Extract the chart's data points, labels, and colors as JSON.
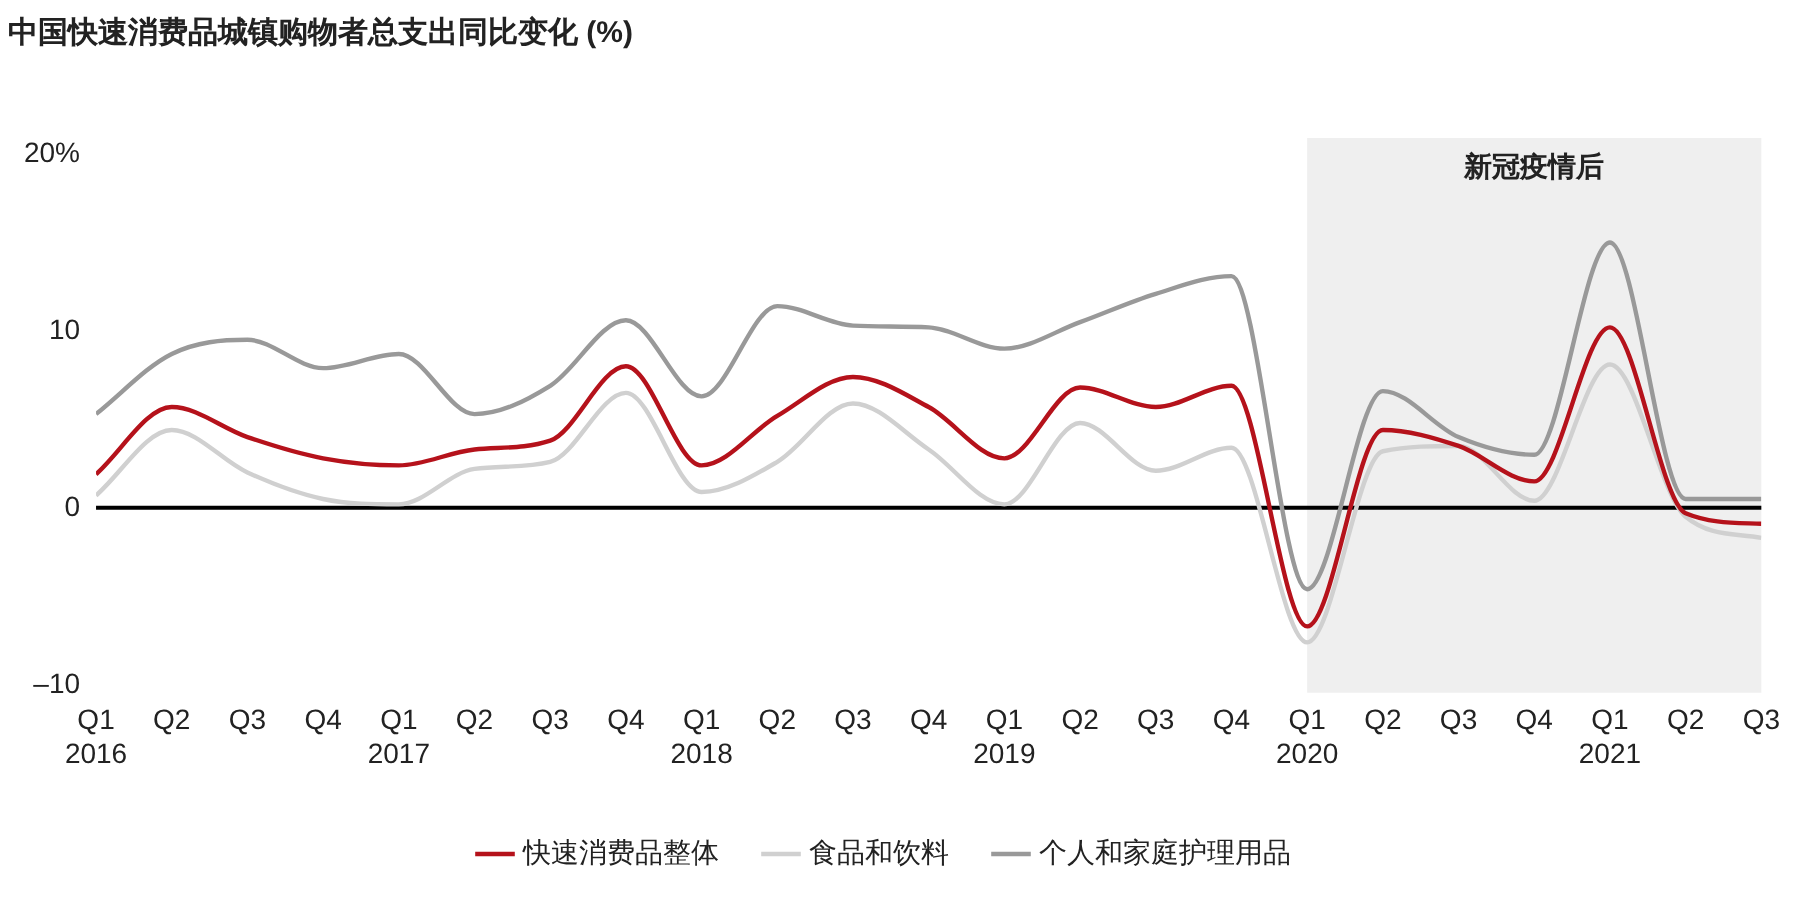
{
  "chart_data": {
    "type": "line",
    "title": "中国快速消费品城镇购物者总支出同比变化 (%)",
    "x": [
      "2016-01",
      "2016-04",
      "2016-07",
      "2016-10",
      "2017-01",
      "2017-04",
      "2017-07",
      "2017-10",
      "2018-01",
      "2018-04",
      "2018-07",
      "2018-10",
      "2019-01",
      "2019-04",
      "2019-07",
      "2019-10",
      "2020-01",
      "2020-04",
      "2020-07",
      "2020-10",
      "2021-01",
      "2021-04",
      "2021-07"
    ],
    "xlim": [
      "2016-01",
      "2021-07"
    ],
    "xticks": [
      {
        "value": "2016-01",
        "label": "Q1\n2016"
      },
      {
        "value": "2016-04",
        "label": "Q2"
      },
      {
        "value": "2016-07",
        "label": "Q3"
      },
      {
        "value": "2016-10",
        "label": "Q4"
      },
      {
        "value": "2017-01",
        "label": "Q1\n2017"
      },
      {
        "value": "2017-04",
        "label": "Q2"
      },
      {
        "value": "2017-07",
        "label": "Q3"
      },
      {
        "value": "2017-10",
        "label": "Q4"
      },
      {
        "value": "2018-01",
        "label": "Q1\n2018"
      },
      {
        "value": "2018-04",
        "label": "Q2"
      },
      {
        "value": "2018-07",
        "label": "Q3"
      },
      {
        "value": "2018-10",
        "label": "Q4"
      },
      {
        "value": "2019-01",
        "label": "Q1\n2019"
      },
      {
        "value": "2019-04",
        "label": "Q2"
      },
      {
        "value": "2019-07",
        "label": "Q3"
      },
      {
        "value": "2019-10",
        "label": "Q4"
      },
      {
        "value": "2020-01",
        "label": "Q1\n2020"
      },
      {
        "value": "2020-04",
        "label": "Q2"
      },
      {
        "value": "2020-07",
        "label": "Q3"
      },
      {
        "value": "2020-10",
        "label": "Q4"
      },
      {
        "value": "2021-01",
        "label": "Q1\n2021"
      },
      {
        "value": "2021-04",
        "label": "Q2"
      },
      {
        "value": "2021-07",
        "label": "Q3"
      }
    ],
    "series": [
      {
        "name": "快速消费品整体",
        "color": "#b5121b",
        "values": [
          1.9,
          5.7,
          4.0,
          2.8,
          2.4,
          3.3,
          3.8,
          8.0,
          2.4,
          5.2,
          7.4,
          5.7,
          2.8,
          6.8,
          5.7,
          6.9,
          -6.7,
          4.4,
          3.5,
          1.5,
          10.2,
          -0.3,
          -0.9
        ]
      },
      {
        "name": "食品和饮料",
        "color": "#d0d0d0",
        "values": [
          0.7,
          4.4,
          2.0,
          0.5,
          0.2,
          2.2,
          2.6,
          6.5,
          0.9,
          2.6,
          5.9,
          3.3,
          0.2,
          4.8,
          2.1,
          3.4,
          -7.6,
          3.2,
          3.5,
          0.4,
          8.1,
          -0.5,
          -1.7
        ]
      },
      {
        "name": "个人和家庭护理用品",
        "color": "#999999",
        "values": [
          5.3,
          8.7,
          9.5,
          7.9,
          8.7,
          5.3,
          6.9,
          10.6,
          6.3,
          11.4,
          10.3,
          10.2,
          9.0,
          10.5,
          12.1,
          13.1,
          -4.6,
          6.6,
          4.0,
          3.0,
          15.0,
          0.5,
          0.5
        ]
      }
    ],
    "ylim": [
      -10,
      20
    ],
    "yticks": [
      {
        "value": -10,
        "label": "–10"
      },
      0,
      10,
      {
        "value": 20,
        "label": "20%"
      }
    ],
    "ref_lines": [
      {
        "axis": "y",
        "value": 0,
        "color": "#000000"
      }
    ],
    "bands": [
      {
        "axis": "x",
        "from": "2020-01",
        "to": "2021-07",
        "label": "新冠疫情后",
        "color": "#efefef"
      }
    ],
    "grid": false,
    "legend": "bottom",
    "marker": "none",
    "line_style": "solid"
  }
}
